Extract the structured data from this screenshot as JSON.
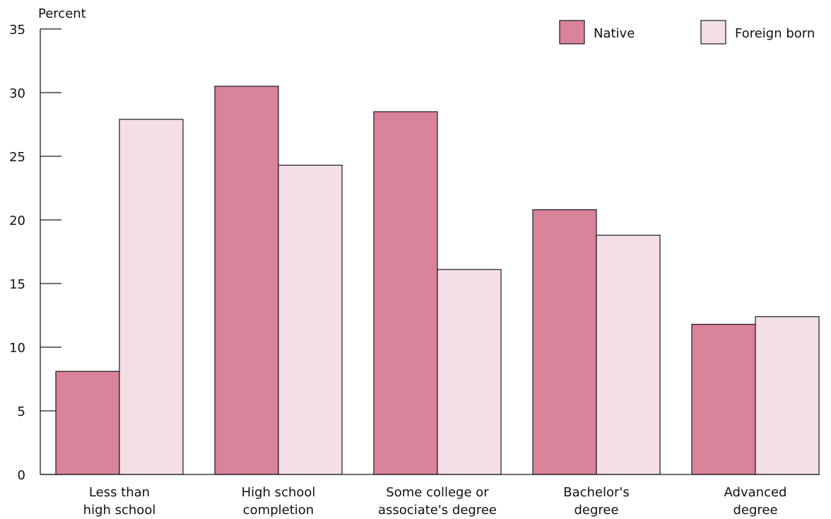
{
  "colors": {
    "native": "#d9839b",
    "foreign_born": "#f4dfe5",
    "outline": "#1a1a1a"
  },
  "chart_data": {
    "type": "bar",
    "title": "",
    "ylabel": "Percent",
    "xlabel": "",
    "ylim": [
      0,
      35
    ],
    "yticks": [
      "0",
      "5",
      "10",
      "15",
      "20",
      "25",
      "30",
      "35"
    ],
    "grid": false,
    "legend_position": "top-right",
    "categories": [
      [
        "Less than",
        "high school"
      ],
      [
        "High school",
        "completion"
      ],
      [
        "Some college or",
        "associate's degree"
      ],
      [
        "Bachelor's",
        "degree"
      ],
      [
        "Advanced",
        "degree"
      ]
    ],
    "series": [
      {
        "name": "Native",
        "color_key": "native",
        "values": [
          8.1,
          30.5,
          28.5,
          20.8,
          11.8
        ]
      },
      {
        "name": "Foreign born",
        "color_key": "foreign_born",
        "values": [
          27.9,
          24.3,
          16.1,
          18.8,
          12.4
        ]
      }
    ]
  }
}
